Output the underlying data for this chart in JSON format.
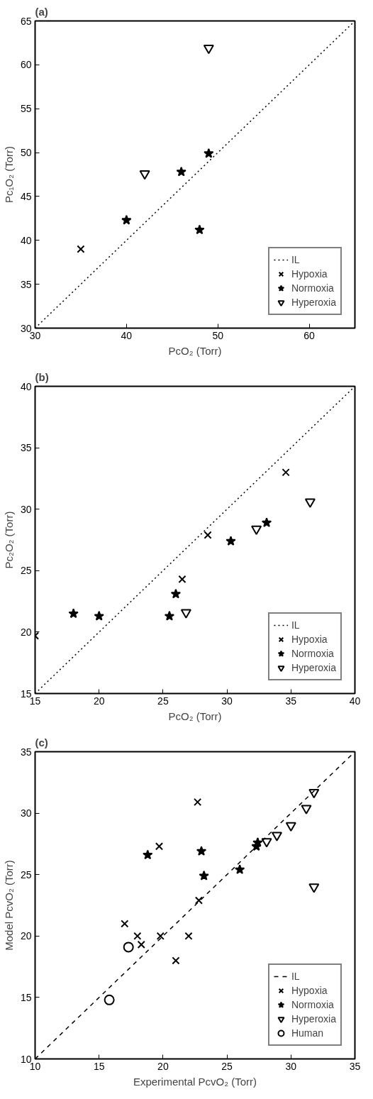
{
  "chart_data": [
    {
      "type": "scatter",
      "title": "(a)",
      "xlabel": "PcO₂ (Torr)",
      "ylabel": "Pc₁O₂ (Torr)",
      "xlim": [
        30,
        65
      ],
      "ylim": [
        30,
        65
      ],
      "xticks": [
        30,
        40,
        50,
        60
      ],
      "yticks": [
        30,
        35,
        40,
        45,
        50,
        55,
        60,
        65
      ],
      "grid": false,
      "legend": "bottom right",
      "series": [
        {
          "name": "IL",
          "type": "line",
          "color": "#000000",
          "line_style": "dotted",
          "x": [
            30,
            65
          ],
          "values": [
            30,
            65
          ]
        },
        {
          "name": "Hypoxia",
          "color": "#000000",
          "marker": "cross",
          "x": [
            35
          ],
          "values": [
            39
          ]
        },
        {
          "name": "Normoxia",
          "color": "#000000",
          "marker": "star",
          "x": [
            40,
            46,
            49,
            48
          ],
          "values": [
            42.3,
            47.8,
            49.9,
            41.2
          ]
        },
        {
          "name": "Hyperoxia",
          "color": "#000000",
          "marker": "triangle",
          "x": [
            42,
            49
          ],
          "values": [
            47.6,
            61.9
          ]
        }
      ]
    },
    {
      "type": "scatter",
      "title": "(b)",
      "xlabel": "PcO₂ (Torr)",
      "ylabel": "Pc₂O₂ (Torr)",
      "xlim": [
        15,
        40
      ],
      "ylim": [
        15,
        40
      ],
      "xticks": [
        15,
        20,
        25,
        30,
        35,
        40
      ],
      "yticks": [
        15,
        20,
        25,
        30,
        35,
        40
      ],
      "grid": false,
      "legend": "bottom right",
      "series": [
        {
          "name": "IL",
          "type": "line",
          "color": "#000000",
          "line_style": "dotted",
          "x": [
            15,
            40
          ],
          "values": [
            15,
            40
          ]
        },
        {
          "name": "Hypoxia",
          "color": "#000000",
          "marker": "cross",
          "x": [
            15,
            26.5,
            28.5,
            34.6
          ],
          "values": [
            19.7,
            24.3,
            27.9,
            33.0
          ]
        },
        {
          "name": "Normoxia",
          "color": "#000000",
          "marker": "star",
          "x": [
            18,
            20,
            25.5,
            26,
            30.3,
            33.1
          ],
          "values": [
            21.5,
            21.3,
            21.3,
            23.1,
            27.4,
            28.9
          ]
        },
        {
          "name": "Hyperoxia",
          "color": "#000000",
          "marker": "triangle",
          "x": [
            26.8,
            32.3,
            36.5
          ],
          "values": [
            21.6,
            28.4,
            30.6
          ]
        }
      ]
    },
    {
      "type": "scatter",
      "title": "(c)",
      "xlabel": "Experimental PcvO₂ (Torr)",
      "ylabel": "Model PcvO₂ (Torr)",
      "xlim": [
        10,
        35
      ],
      "ylim": [
        10,
        35
      ],
      "xticks": [
        10,
        15,
        20,
        25,
        30,
        35
      ],
      "yticks": [
        10,
        15,
        20,
        25,
        30,
        35
      ],
      "grid": false,
      "legend": "bottom right",
      "series": [
        {
          "name": "IL",
          "type": "line",
          "color": "#000000",
          "line_style": "dashed",
          "x": [
            10,
            35
          ],
          "values": [
            10,
            35
          ]
        },
        {
          "name": "Hypoxia",
          "color": "#000000",
          "marker": "cross",
          "x": [
            17,
            18,
            18.3,
            19.8,
            19.7,
            22.7,
            22.8,
            21,
            22
          ],
          "values": [
            21,
            20,
            19.3,
            20,
            27.3,
            30.9,
            22.9,
            18,
            20
          ]
        },
        {
          "name": "Normoxia",
          "color": "#000000",
          "marker": "star",
          "x": [
            18.8,
            23,
            23.2,
            26,
            27.3,
            27.4
          ],
          "values": [
            26.6,
            26.9,
            24.9,
            25.4,
            27.3,
            27.6
          ]
        },
        {
          "name": "Hyperoxia",
          "color": "#000000",
          "marker": "triangle",
          "x": [
            28.1,
            28.9,
            30,
            31.2,
            31.8,
            31.8
          ],
          "values": [
            27.7,
            28.2,
            29.0,
            30.4,
            31.7,
            24.0
          ]
        },
        {
          "name": "Human",
          "color": "#000000",
          "marker": "circle",
          "x": [
            17.3,
            15.8
          ],
          "values": [
            19.1,
            14.8
          ]
        }
      ]
    }
  ]
}
